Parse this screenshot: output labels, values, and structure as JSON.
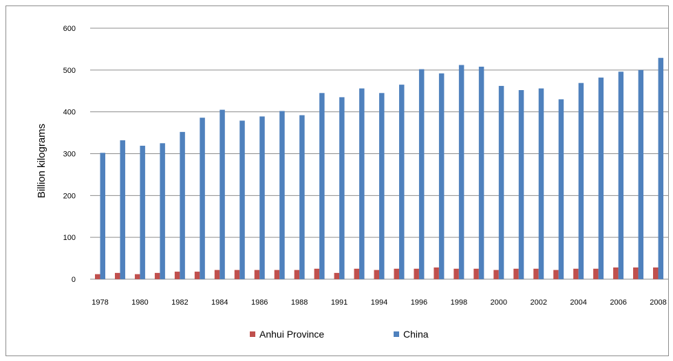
{
  "chart_data": {
    "type": "bar",
    "title": "",
    "xlabel": "",
    "ylabel": "Billion kilograms",
    "ylim": [
      0,
      600
    ],
    "yticks": [
      0,
      100,
      200,
      300,
      400,
      500,
      600
    ],
    "grid": true,
    "legend_position": "bottom",
    "categories": [
      "1978",
      "1979",
      "1980",
      "1981",
      "1982",
      "1983",
      "1984",
      "1985",
      "1986",
      "1987",
      "1988",
      "1989",
      "1991",
      "1992",
      "1994",
      "1995",
      "1996",
      "1997",
      "1998",
      "1999",
      "2000",
      "2001",
      "2002",
      "2003",
      "2004",
      "2005",
      "2006",
      "2007",
      "2008"
    ],
    "tick_labels": [
      "1978",
      "",
      "1980",
      "",
      "1982",
      "",
      "1984",
      "",
      "1986",
      "",
      "1988",
      "",
      "1991",
      "",
      "1994",
      "",
      "1996",
      "",
      "1998",
      "",
      "2000",
      "",
      "2002",
      "",
      "2004",
      "",
      "2006",
      "",
      "2008"
    ],
    "series": [
      {
        "name": "Anhui Province",
        "color": "#c0504d",
        "values": [
          12,
          15,
          12,
          15,
          18,
          18,
          22,
          22,
          22,
          22,
          22,
          25,
          15,
          25,
          22,
          25,
          25,
          28,
          25,
          25,
          22,
          25,
          25,
          22,
          25,
          25,
          28,
          28,
          28
        ]
      },
      {
        "name": "China",
        "color": "#4f81bd",
        "values": [
          302,
          332,
          319,
          325,
          352,
          386,
          405,
          379,
          389,
          402,
          392,
          445,
          435,
          456,
          445,
          465,
          502,
          492,
          512,
          508,
          462,
          452,
          456,
          430,
          469,
          482,
          496,
          500,
          529
        ]
      }
    ]
  }
}
